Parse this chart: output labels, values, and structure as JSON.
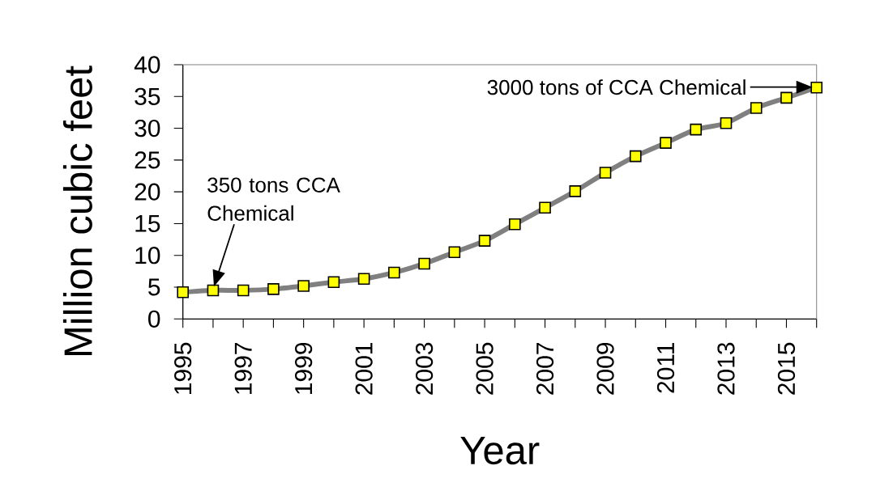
{
  "chart_data": {
    "type": "line",
    "xlabel": "Year",
    "ylabel": "Million cubic feet",
    "x": [
      1995,
      1996,
      1997,
      1998,
      1999,
      2000,
      2001,
      2002,
      2003,
      2004,
      2005,
      2006,
      2007,
      2008,
      2009,
      2010,
      2011,
      2012,
      2013,
      2014,
      2015,
      2016
    ],
    "series": [
      {
        "color": "#808080",
        "colors": [
          "#ffff00",
          "#ffff00",
          "#ffff00",
          "#ffff00",
          "#ffff00",
          "#ffff00",
          "#ffff00",
          "#ffff00",
          "#ffff00",
          "#ffff00",
          "#ffff00",
          "#ffff00",
          "#ffff00",
          "#ffff00",
          "#ffff00",
          "#ffff00",
          "#ffff00",
          "#ffff00",
          "#ffff00",
          "#ffff00",
          "#ffff00",
          "#ffff00"
        ],
        "values": [
          4.2,
          4.5,
          4.5,
          4.7,
          5.2,
          5.8,
          6.3,
          7.3,
          8.7,
          10.5,
          12.3,
          14.9,
          17.5,
          20.1,
          23.0,
          25.6,
          27.7,
          29.8,
          30.8,
          33.2,
          34.8,
          36.4
        ]
      }
    ],
    "xlim": [
      1995,
      2016
    ],
    "ylim": [
      0,
      40
    ],
    "xticks": [
      1995,
      {
        "value": 1996,
        "label": null
      },
      1997,
      {
        "value": 1998,
        "label": null
      },
      1999,
      {
        "value": 2000,
        "label": null
      },
      2001,
      {
        "value": 2002,
        "label": null
      },
      2003,
      {
        "value": 2004,
        "label": null
      },
      2005,
      {
        "value": 2006,
        "label": null
      },
      2007,
      {
        "value": 2008,
        "label": null
      },
      2009,
      {
        "value": 2010,
        "label": null
      },
      2011,
      {
        "value": 2012,
        "label": null
      },
      2013,
      {
        "value": 2014,
        "label": null
      },
      2015,
      {
        "value": 2016,
        "label": null
      }
    ],
    "yticks": [
      0,
      5,
      10,
      15,
      20,
      25,
      30,
      35,
      40
    ],
    "marker": "square",
    "line_style": "solid",
    "annotations": [
      "350 tons CCA Chemical",
      "3000 tons of CCA Chemical"
    ]
  }
}
